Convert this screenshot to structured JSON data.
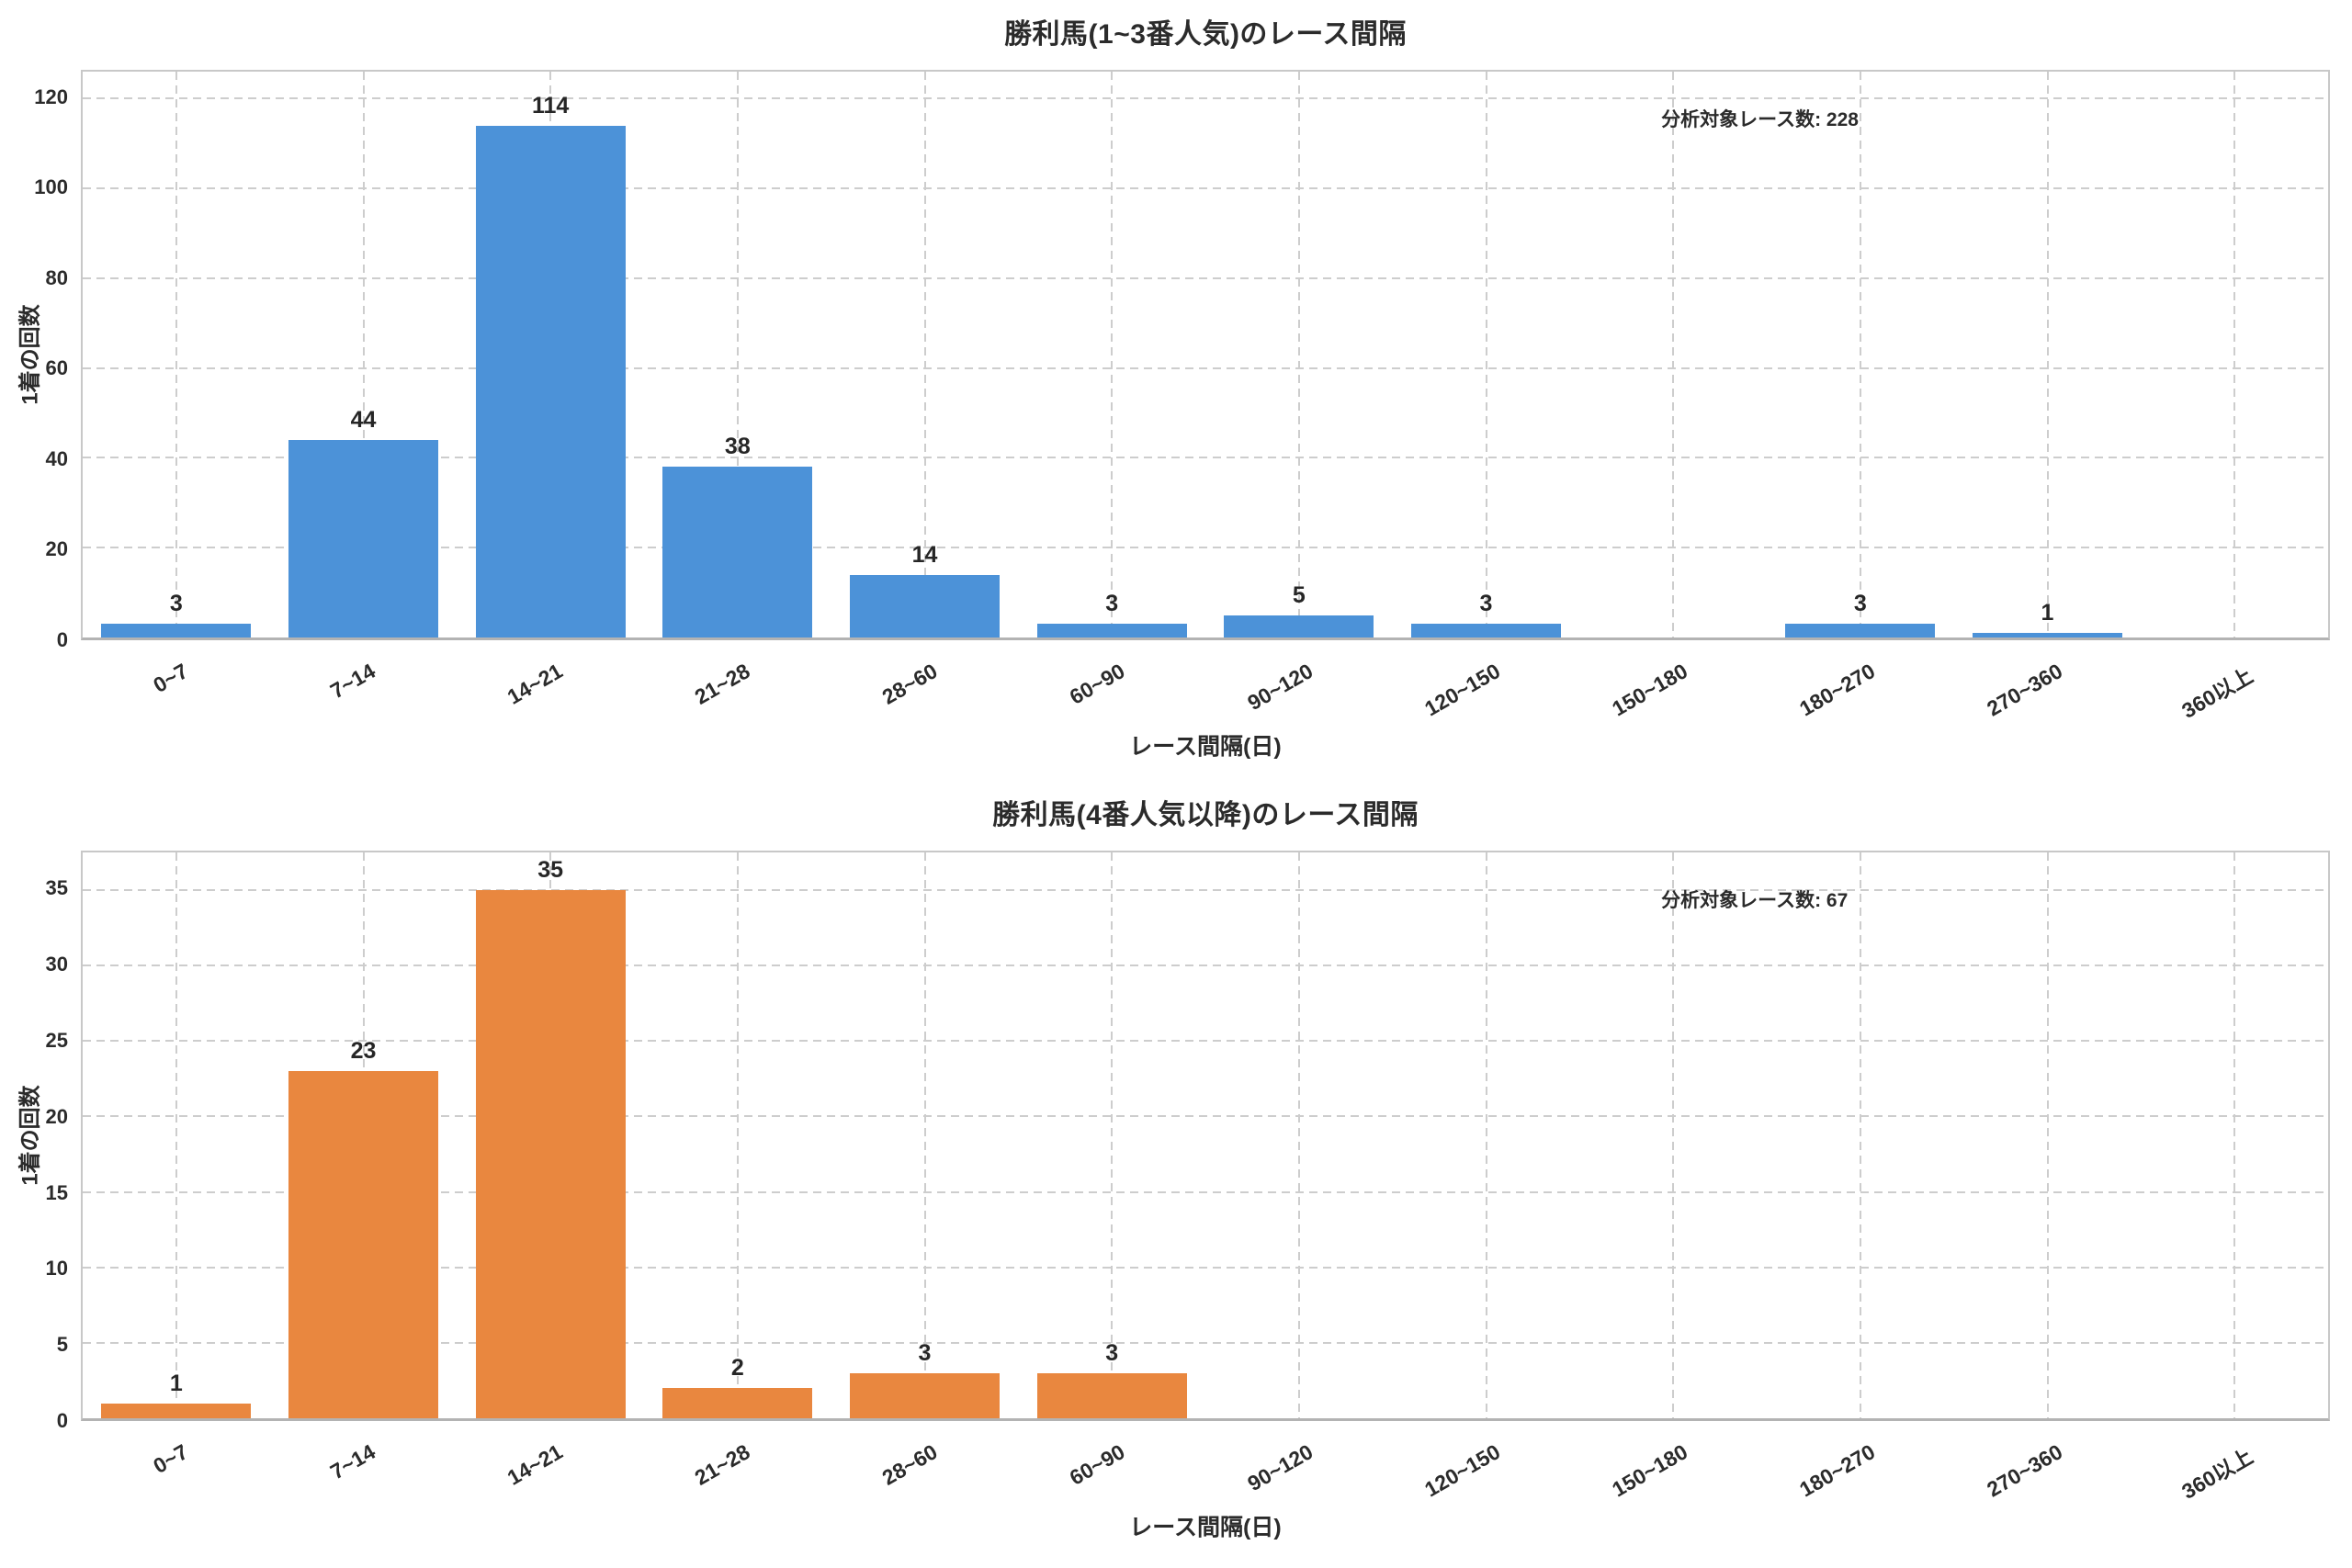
{
  "figure": {
    "background": "#ffffff",
    "text_color": "#2b2b2b",
    "grid_color": "#cdcdcd",
    "spine_color": "#c8c8c8"
  },
  "chart_data": [
    {
      "type": "bar",
      "title": "勝利馬(1~3番人気)のレース間隔",
      "xlabel": "レース間隔(日)",
      "ylabel": "1着の回数",
      "annotation": "分析対象レース数: 228",
      "bar_color": "#4C92D8",
      "categories": [
        "0~7",
        "7~14",
        "14~21",
        "21~28",
        "28~60",
        "60~90",
        "90~120",
        "120~150",
        "150~180",
        "180~270",
        "270~360",
        "360以上"
      ],
      "values": [
        3,
        44,
        114,
        38,
        14,
        3,
        5,
        3,
        0,
        3,
        1,
        0
      ],
      "yticks": [
        0,
        20,
        40,
        60,
        80,
        100,
        120
      ],
      "ylim": [
        0,
        126
      ],
      "grid": true,
      "legend": null
    },
    {
      "type": "bar",
      "title": "勝利馬(4番人気以降)のレース間隔",
      "xlabel": "レース間隔(日)",
      "ylabel": "1着の回数",
      "annotation": "分析対象レース数: 67",
      "bar_color": "#E9873F",
      "categories": [
        "0~7",
        "7~14",
        "14~21",
        "21~28",
        "28~60",
        "60~90",
        "90~120",
        "120~150",
        "150~180",
        "180~270",
        "270~360",
        "360以上"
      ],
      "values": [
        1,
        23,
        35,
        2,
        3,
        3,
        0,
        0,
        0,
        0,
        0,
        0
      ],
      "yticks": [
        0,
        5,
        10,
        15,
        20,
        25,
        30,
        35
      ],
      "ylim": [
        0,
        37.5
      ],
      "grid": true,
      "legend": null
    }
  ]
}
